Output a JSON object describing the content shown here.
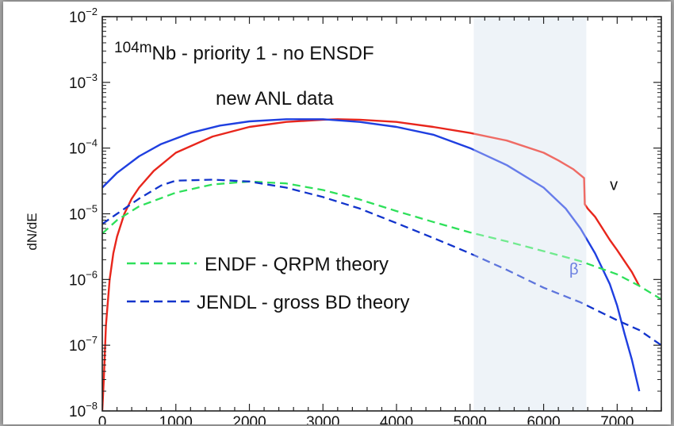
{
  "chart_data": {
    "type": "line",
    "title": "104mNb - priority 1 - no ENSDF",
    "title_parts": {
      "superscript": "104m",
      "main": "Nb - priority 1 - no ENSDF"
    },
    "subtitle": "new ANL data",
    "ylabel": "dN/dE",
    "xlabel": "",
    "xlim": [
      0,
      7600
    ],
    "ylim": [
      1e-08,
      0.01
    ],
    "yscale": "log",
    "x_ticks": [
      "0",
      "1000",
      "2000",
      "3000",
      "4000",
      "5000",
      "6000",
      "7000"
    ],
    "x_tick_values": [
      0,
      1000,
      2000,
      3000,
      4000,
      5000,
      6000,
      7000
    ],
    "y_tick_values": [
      1e-08,
      1e-07,
      1e-06,
      1e-05,
      0.0001,
      0.001,
      0.01
    ],
    "y_tick_exponents": [
      "−8",
      "−7",
      "−6",
      "−5",
      "−4",
      "−3",
      "−2"
    ],
    "y_tick_base": "10",
    "shaded_region": {
      "x": [
        5050,
        6580
      ],
      "color": "#e6eef5"
    },
    "legend_position": "lower-left",
    "legend": [
      {
        "label": "ENDF - QRPM theory",
        "series": "endf"
      },
      {
        "label": "JENDL - gross BD theory",
        "series": "jendl"
      }
    ],
    "annotations": [
      {
        "text": "v",
        "x": 6900,
        "y": 2.3e-05,
        "series": "nu"
      },
      {
        "text": "β",
        "sup": "-",
        "x": 6350,
        "y": 1.2e-06,
        "series": "beta"
      }
    ],
    "series": [
      {
        "id": "nu",
        "annotation": "v",
        "color": "#e8261c",
        "dash": "solid",
        "x": [
          0,
          20,
          50,
          100,
          150,
          200,
          300,
          400,
          500,
          700,
          1000,
          1500,
          2000,
          2500,
          3000,
          3200,
          3500,
          4000,
          4500,
          5000,
          5500,
          6000,
          6200,
          6400,
          6550,
          6560,
          6600,
          6700,
          6800,
          6900,
          7000,
          7100,
          7200,
          7300
        ],
        "y": [
          1e-08,
          3e-08,
          2e-07,
          1e-06,
          2.5e-06,
          4.5e-06,
          1e-05,
          1.7e-05,
          2.5e-05,
          4.5e-05,
          8.5e-05,
          0.00015,
          0.00021,
          0.00025,
          0.00027,
          0.000275,
          0.00027,
          0.00025,
          0.00021,
          0.00017,
          0.00013,
          8.5e-05,
          6.5e-05,
          4.8e-05,
          3.5e-05,
          1.4e-05,
          1.2e-05,
          9e-06,
          6e-06,
          4e-06,
          2.8e-06,
          1.9e-06,
          1.3e-06,
          8e-07
        ]
      },
      {
        "id": "beta",
        "annotation": "β-",
        "color": "#1f3fe0",
        "dash": "solid",
        "x": [
          0,
          200,
          500,
          800,
          1200,
          1600,
          2000,
          2500,
          3000,
          3500,
          4000,
          4500,
          5000,
          5500,
          6000,
          6300,
          6500,
          6700,
          6900,
          7000,
          7100,
          7200,
          7300
        ],
        "y": [
          2.5e-05,
          4.2e-05,
          7.5e-05,
          0.000115,
          0.00017,
          0.00022,
          0.000255,
          0.000275,
          0.000275,
          0.00025,
          0.00021,
          0.00016,
          0.0001,
          5.5e-05,
          2.5e-05,
          1.2e-05,
          6e-06,
          2.5e-06,
          8.5e-07,
          4e-07,
          1.5e-07,
          6e-08,
          2e-08
        ]
      },
      {
        "id": "endf",
        "name": "ENDF - QRPM theory",
        "color": "#2ee05a",
        "dash": "dashed",
        "x": [
          0,
          200,
          500,
          1000,
          1500,
          2000,
          2500,
          3000,
          3500,
          4000,
          4500,
          5000,
          5500,
          6000,
          6500,
          7000,
          7300,
          7600
        ],
        "y": [
          5e-06,
          8e-06,
          1.3e-05,
          2.1e-05,
          2.8e-05,
          3.1e-05,
          2.9e-05,
          2.3e-05,
          1.65e-05,
          1.1e-05,
          7.5e-06,
          5.2e-06,
          3.8e-06,
          2.7e-06,
          1.9e-06,
          1.2e-06,
          8e-07,
          5e-07
        ]
      },
      {
        "id": "jendl",
        "name": "JENDL - gross BD theory",
        "color": "#1234cc",
        "dash": "dashed",
        "x": [
          0,
          200,
          500,
          800,
          1000,
          1500,
          2000,
          2500,
          3000,
          3500,
          4000,
          4500,
          5000,
          5500,
          6000,
          6500,
          7000,
          7300,
          7600
        ],
        "y": [
          7e-06,
          1e-05,
          1.7e-05,
          2.7e-05,
          3.2e-05,
          3.3e-05,
          3.1e-05,
          2.5e-05,
          1.8e-05,
          1.2e-05,
          7.2e-06,
          4.3e-06,
          2.5e-06,
          1.4e-06,
          7.5e-07,
          4.5e-07,
          2.4e-07,
          1.7e-07,
          1e-07
        ]
      }
    ]
  }
}
